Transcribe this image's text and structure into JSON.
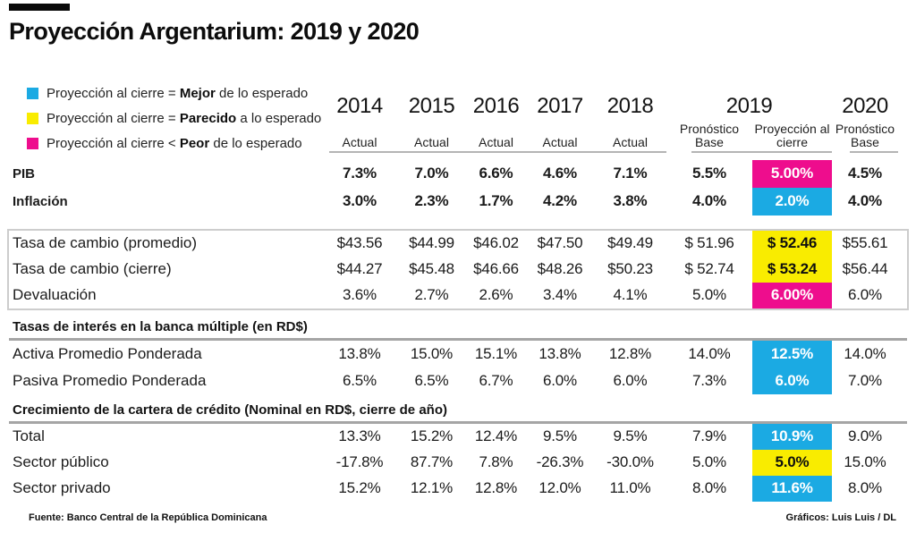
{
  "title": "Proyección Argentarium: 2019 y 2020",
  "palette": {
    "cyan": "#1BAAE3",
    "yellow": "#F9EC00",
    "magenta": "#EE0D8D"
  },
  "legend": {
    "items": [
      {
        "swatch": "cyan",
        "prefix": "Proyección al cierre = ",
        "keyword": "Mejor",
        "suffix": " de lo esperado"
      },
      {
        "swatch": "yellow",
        "prefix": "Proyección al cierre = ",
        "keyword": "Parecido",
        "suffix": " a lo esperado"
      },
      {
        "swatch": "magenta",
        "prefix": "Proyección al cierre < ",
        "keyword": "Peor",
        "suffix": " de lo esperado"
      }
    ]
  },
  "header": {
    "years": [
      "2014",
      "2015",
      "2016",
      "2017",
      "2018",
      "2019",
      "2020"
    ],
    "sub_actual": "Actual",
    "sub_base": "Pronóstico Base",
    "sub_proyeccion": "Proyección al cierre"
  },
  "chart_data": {
    "type": "table",
    "title": "Proyección Argentarium: 2019 y 2020",
    "columns": [
      "2014 Actual",
      "2015 Actual",
      "2016 Actual",
      "2017 Actual",
      "2018 Actual",
      "2019 Pronóstico Base",
      "2019 Proyección al cierre",
      "2020 Pronóstico Base"
    ],
    "highlight_legend": {
      "cyan": "mejor de lo esperado",
      "yellow": "parecido a lo esperado",
      "magenta": "peor de lo esperado"
    },
    "sections": [
      {
        "style": "plain",
        "rows": [
          {
            "label": "PIB",
            "values": [
              "7.3%",
              "7.0%",
              "6.6%",
              "4.6%",
              "7.1%",
              "5.5%",
              "5.00%",
              "4.5%"
            ],
            "highlight": "magenta"
          },
          {
            "label": "Inflación",
            "values": [
              "3.0%",
              "2.3%",
              "1.7%",
              "4.2%",
              "3.8%",
              "4.0%",
              "2.0%",
              "4.0%"
            ],
            "highlight": "cyan"
          }
        ]
      },
      {
        "style": "boxed",
        "rows": [
          {
            "label": "Tasa de cambio (promedio)",
            "values": [
              "$43.56",
              "$44.99",
              "$46.02",
              "$47.50",
              "$49.49",
              "$ 51.96",
              "$ 52.46",
              "$55.61"
            ],
            "highlight": "yellow"
          },
          {
            "label": "Tasa de cambio (cierre)",
            "values": [
              "$44.27",
              "$45.48",
              "$46.66",
              "$48.26",
              "$50.23",
              "$ 52.74",
              "$ 53.24",
              "$56.44"
            ],
            "highlight": "yellow"
          },
          {
            "label": "Devaluación",
            "values": [
              "3.6%",
              "2.7%",
              "2.6%",
              "3.4%",
              "4.1%",
              "5.0%",
              "6.00%",
              "6.0%"
            ],
            "highlight": "magenta"
          }
        ]
      },
      {
        "style": "titled",
        "section_title": "Tasas de interés en la banca múltiple (en RD$)",
        "rows": [
          {
            "label": "Activa Promedio Ponderada",
            "values": [
              "13.8%",
              "15.0%",
              "15.1%",
              "13.8%",
              "12.8%",
              "14.0%",
              "12.5%",
              "14.0%"
            ],
            "highlight": "cyan"
          },
          {
            "label": "Pasiva Promedio Ponderada",
            "values": [
              "6.5%",
              "6.5%",
              "6.7%",
              "6.0%",
              "6.0%",
              "7.3%",
              "6.0%",
              "7.0%"
            ],
            "highlight": "cyan"
          }
        ]
      },
      {
        "style": "titled",
        "section_title": "Crecimiento de la cartera de crédito (Nominal en RD$, cierre de año)",
        "rows": [
          {
            "label": "Total",
            "values": [
              "13.3%",
              "15.2%",
              "12.4%",
              "9.5%",
              "9.5%",
              "7.9%",
              "10.9%",
              "9.0%"
            ],
            "highlight": "cyan"
          },
          {
            "label": "Sector público",
            "values": [
              "-17.8%",
              "87.7%",
              "7.8%",
              "-26.3%",
              "-30.0%",
              "5.0%",
              "5.0%",
              "15.0%"
            ],
            "highlight": "yellow"
          },
          {
            "label": "Sector privado",
            "values": [
              "15.2%",
              "12.1%",
              "12.8%",
              "12.0%",
              "11.0%",
              "8.0%",
              "11.6%",
              "8.0%"
            ],
            "highlight": "cyan"
          }
        ]
      }
    ]
  },
  "footer": {
    "source": "Fuente: Banco Central de la República Dominicana",
    "credit": "Gráficos: Luis Luis / DL"
  }
}
